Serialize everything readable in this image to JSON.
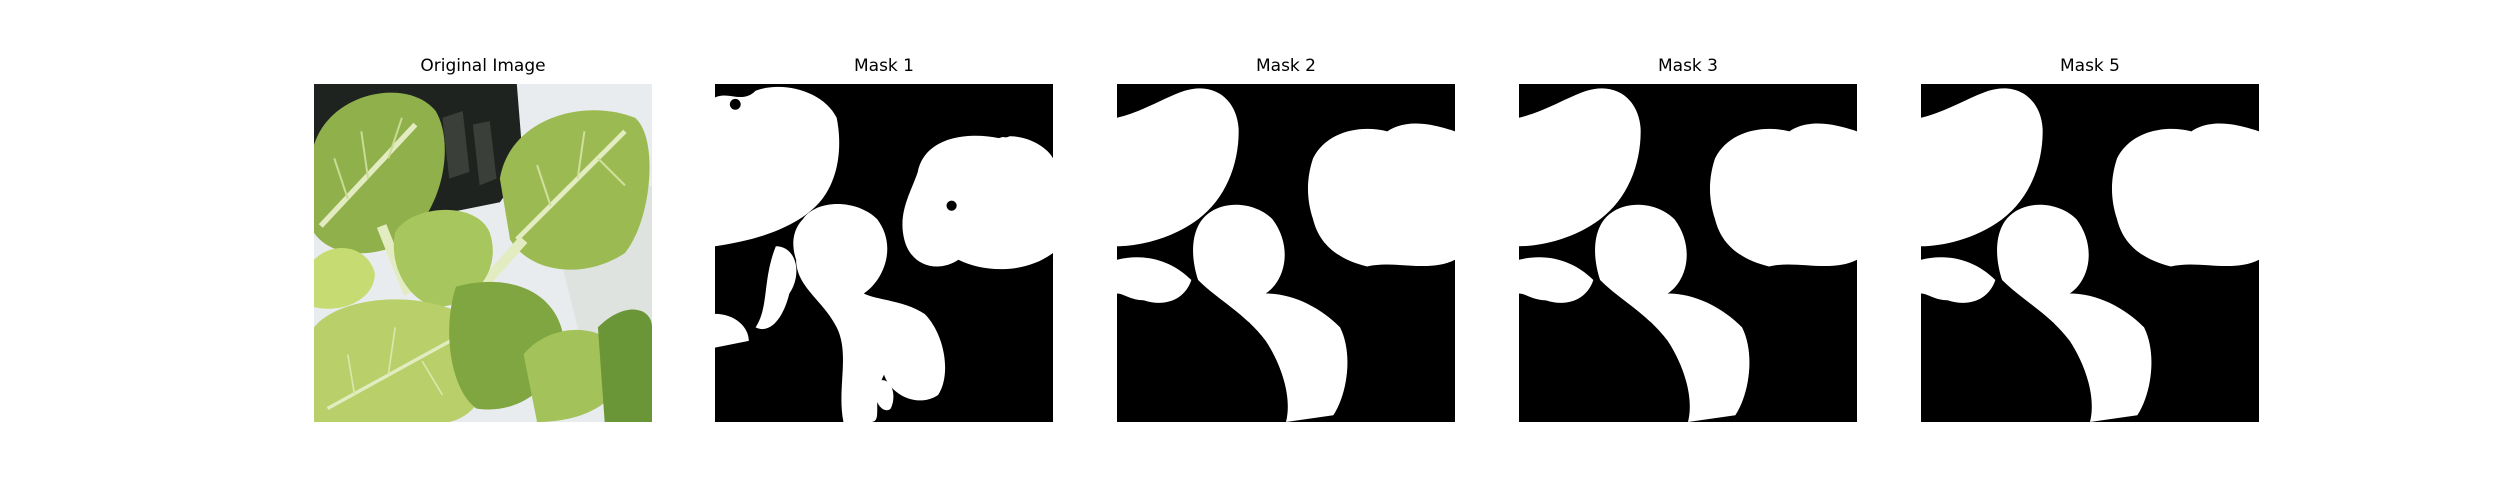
{
  "figure": {
    "panels": [
      {
        "title": "Original Image",
        "kind": "photo",
        "subject": "leafy-green-plant-photo"
      },
      {
        "title": "Mask 1",
        "kind": "binary-mask"
      },
      {
        "title": "Mask 2",
        "kind": "binary-mask"
      },
      {
        "title": "Mask 3",
        "kind": "binary-mask"
      },
      {
        "title": "Mask 5",
        "kind": "binary-mask"
      }
    ],
    "colors": {
      "background": "#ffffff",
      "mask_foreground": "#ffffff",
      "mask_background": "#000000",
      "leaf_light": "#b8cf6a",
      "leaf_mid": "#8fb04a",
      "leaf_dark": "#4f7a2a",
      "stem": "#e2ecc0",
      "tray_dark": "#1f2320",
      "backdrop": "#e9ecee"
    }
  }
}
